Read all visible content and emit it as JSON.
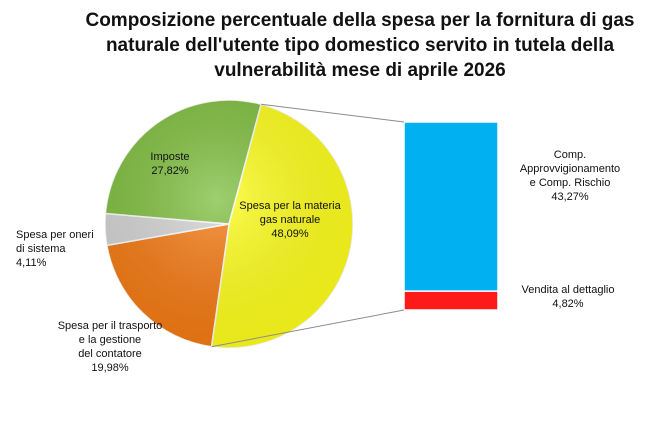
{
  "chart_data": {
    "type": "pie",
    "title_lines": [
      "Composizione percentuale della spesa per la fornitura di gas",
      "naturale dell'utente tipo domestico servito in tutela della",
      "vulnerabilità mese di aprile 2026"
    ],
    "slices": [
      {
        "name": "Spesa per la materia gas naturale",
        "label_lines": [
          "Spesa per la materia",
          "gas naturale"
        ],
        "value": 48.09,
        "value_label": "48,09%",
        "color": "#ffff1a"
      },
      {
        "name": "Spesa per il trasporto e la gestione del contatore",
        "label_lines": [
          "Spesa per il trasporto",
          "e la gestione",
          "del contatore"
        ],
        "value": 19.98,
        "value_label": "19,98%",
        "color": "#f57a12"
      },
      {
        "name": "Spesa per oneri di sistema",
        "label_lines": [
          "Spesa per oneri",
          "di sistema"
        ],
        "value": 4.11,
        "value_label": "4,11%",
        "color": "#d4d4d4"
      },
      {
        "name": "Imposte",
        "label_lines": [
          "Imposte"
        ],
        "value": 27.82,
        "value_label": "27,82%",
        "color": "#7fbf3f"
      }
    ],
    "breakdown_of": "Spesa per la materia gas naturale",
    "breakdown": [
      {
        "name": "Comp. Approvvigionamento e Comp. Rischio",
        "label_lines": [
          "Comp.",
          "Approvvigionamento",
          "e  Comp. Rischio"
        ],
        "value": 43.27,
        "value_label": "43,27%",
        "color": "#00b0f0"
      },
      {
        "name": "Vendita al dettaglio",
        "label_lines": [
          "Vendita al dettaglio"
        ],
        "value": 4.82,
        "value_label": "4,82%",
        "color": "#ff1a1a"
      }
    ]
  }
}
